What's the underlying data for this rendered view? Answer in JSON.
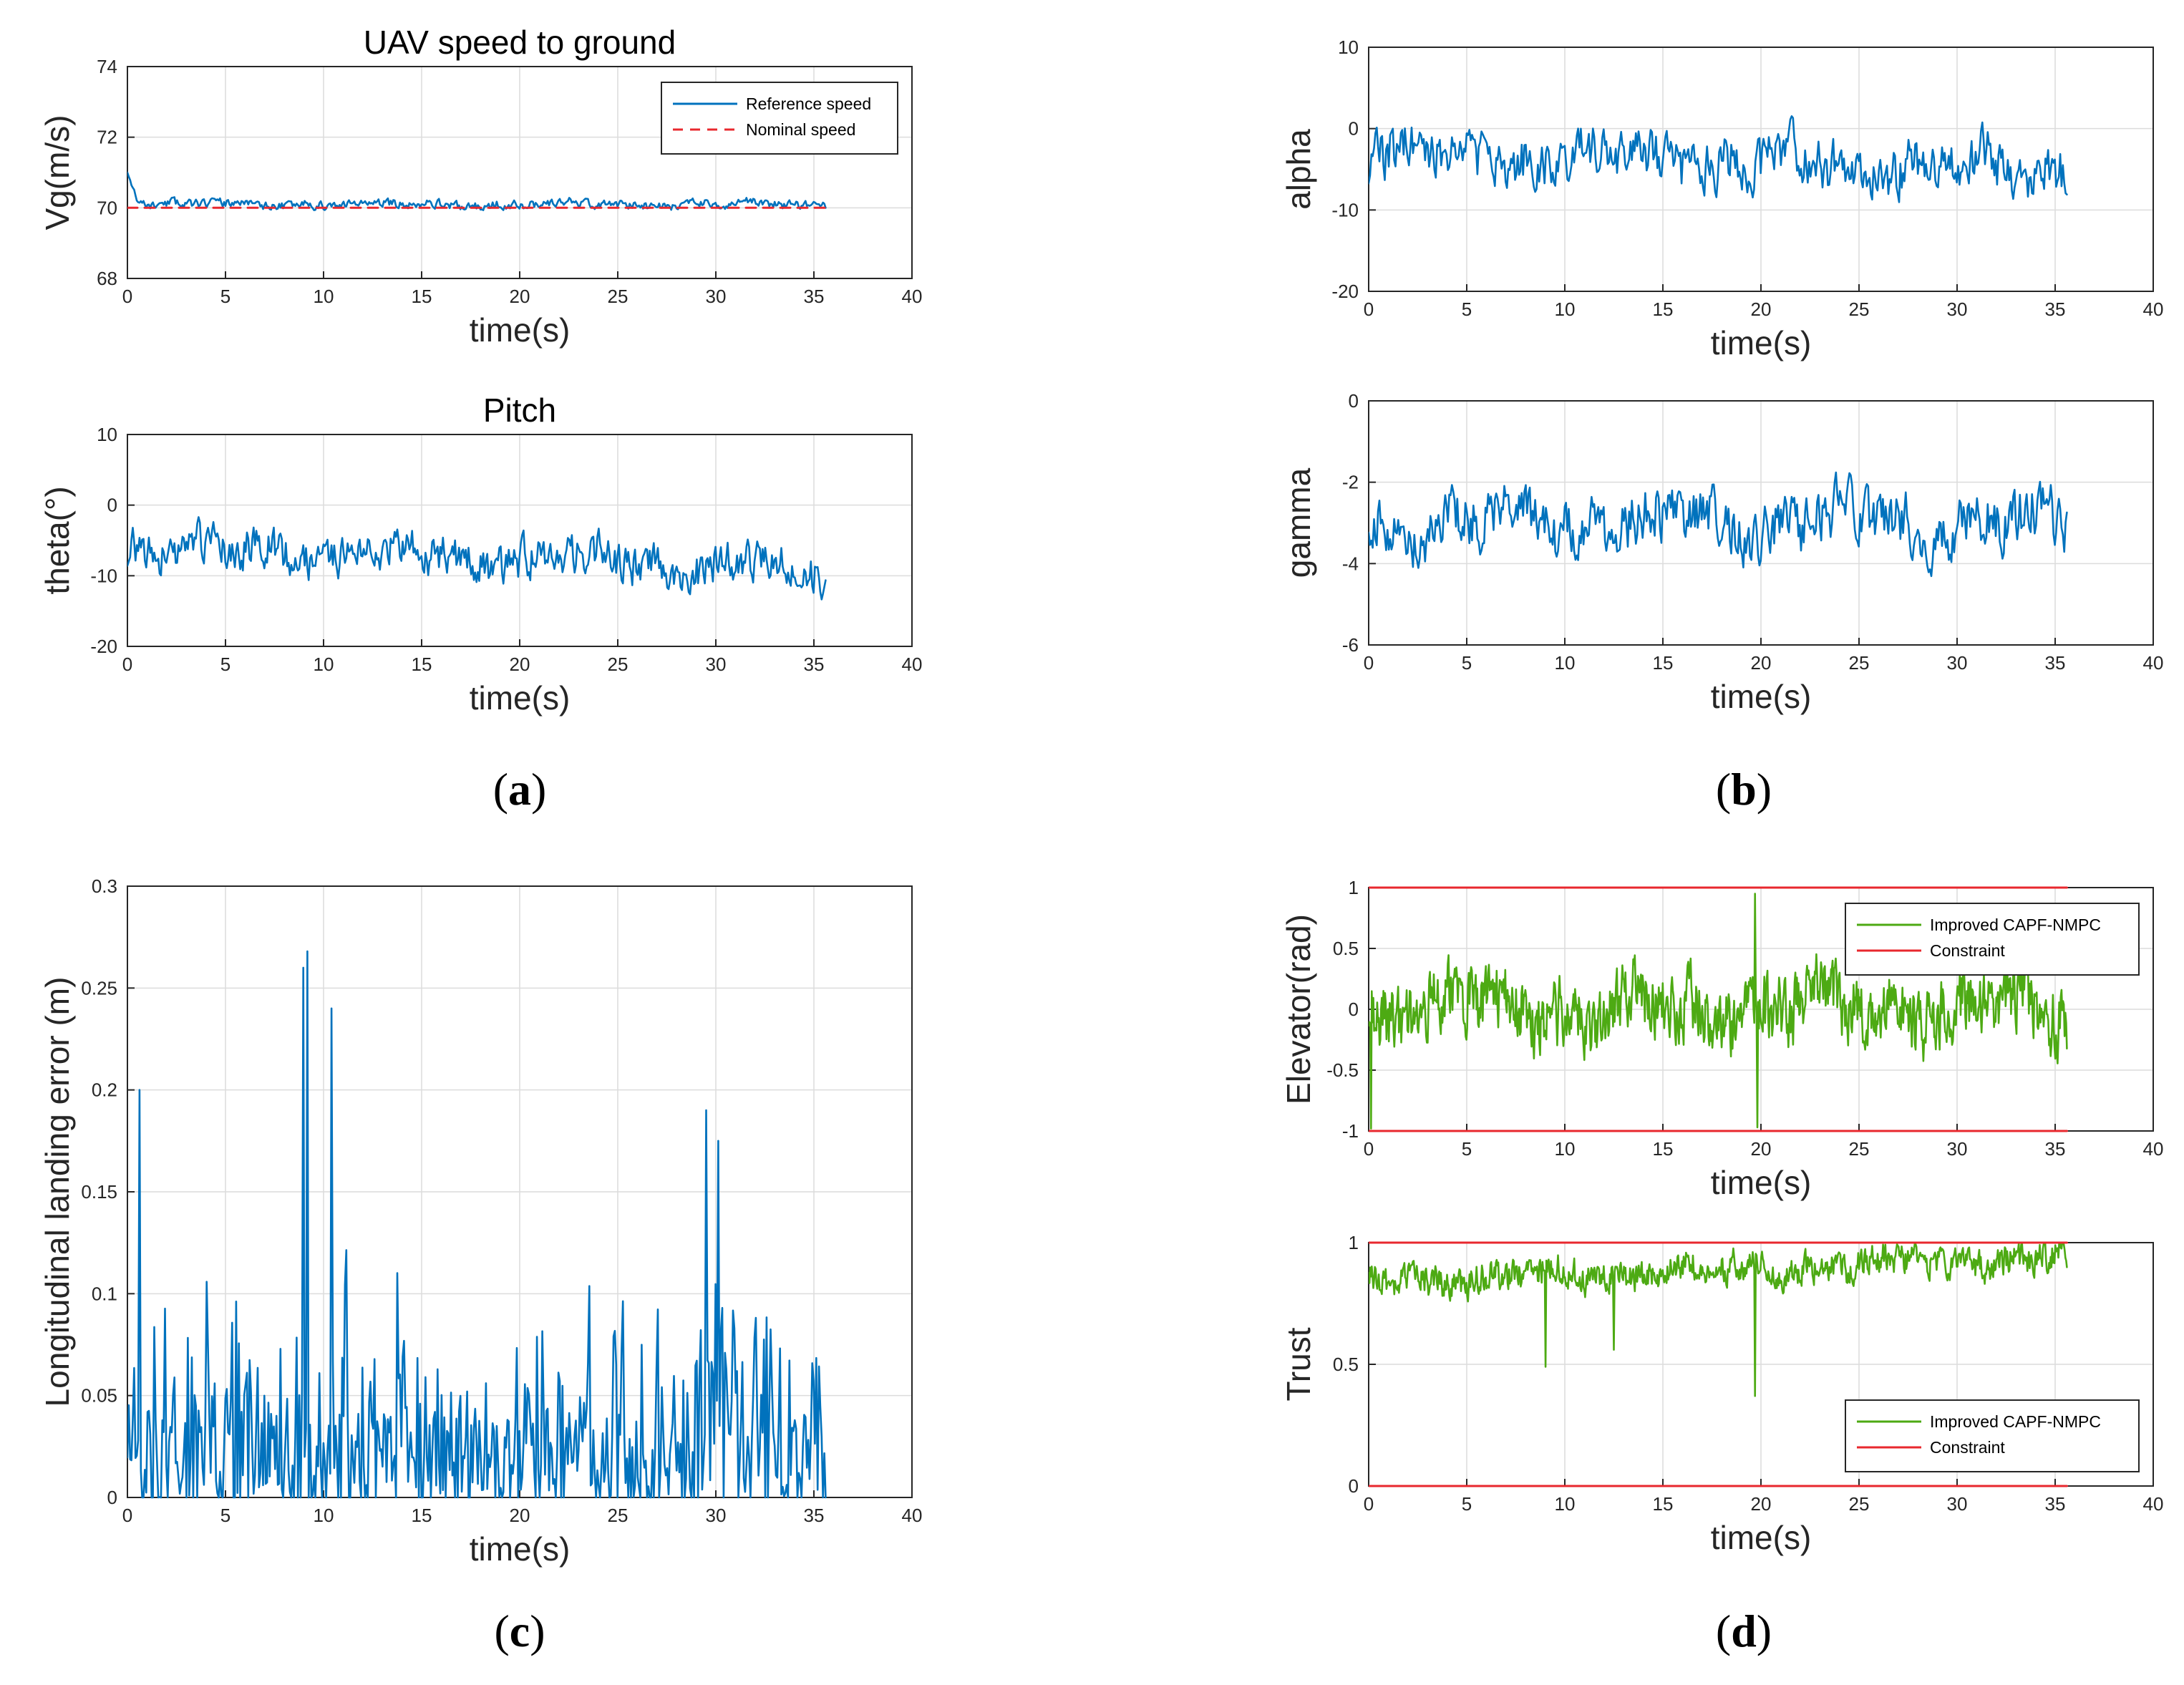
{
  "chart_data": [
    {
      "id": "a1",
      "type": "line",
      "panel": "a",
      "title": "UAV speed to ground",
      "xlabel": "time(s)",
      "ylabel": "Vg(m/s)",
      "xlim": [
        0,
        40
      ],
      "ylim": [
        68,
        74
      ],
      "xticks": [
        0,
        5,
        10,
        15,
        20,
        25,
        30,
        35,
        40
      ],
      "yticks": [
        68,
        70,
        72,
        74
      ],
      "grid": true,
      "legend_position": "top-right",
      "series": [
        {
          "name": "Reference speed",
          "color": "#0072BD",
          "style": "solid",
          "t_end": 35.6,
          "noise": {
            "base": 70.1,
            "amp": 0.2,
            "seed": 11,
            "spike": [
              0.0,
              71.0,
              0.6
            ]
          }
        },
        {
          "name": "Nominal speed",
          "color": "#E8282E",
          "style": "dashed",
          "t_end": 35.6,
          "points": [
            [
              0,
              70
            ],
            [
              35.6,
              70
            ]
          ]
        }
      ]
    },
    {
      "id": "a2",
      "type": "line",
      "panel": "a",
      "title": "Pitch",
      "xlabel": "time(s)",
      "ylabel": "theta(°)",
      "xlim": [
        0,
        40
      ],
      "ylim": [
        -20,
        10
      ],
      "xticks": [
        0,
        5,
        10,
        15,
        20,
        25,
        30,
        35,
        40
      ],
      "yticks": [
        -20,
        -10,
        0,
        10
      ],
      "grid": true,
      "series": [
        {
          "name": "theta",
          "color": "#0072BD",
          "style": "solid",
          "t_end": 35.6,
          "noise": {
            "base": -6,
            "amp": 4.5,
            "seed": 23,
            "trend": -3
          }
        }
      ]
    },
    {
      "id": "b1",
      "type": "line",
      "panel": "b",
      "title": "",
      "xlabel": "time(s)",
      "ylabel": "alpha",
      "xlim": [
        0,
        40
      ],
      "ylim": [
        -20,
        10
      ],
      "xticks": [
        0,
        5,
        10,
        15,
        20,
        25,
        30,
        35,
        40
      ],
      "yticks": [
        -20,
        -10,
        0,
        10
      ],
      "grid": true,
      "series": [
        {
          "name": "alpha",
          "color": "#0072BD",
          "style": "solid",
          "t_end": 35.6,
          "noise": {
            "base": -3,
            "amp": 5,
            "seed": 37,
            "trend": -2
          }
        }
      ]
    },
    {
      "id": "b2",
      "type": "line",
      "panel": "b",
      "title": "",
      "xlabel": "time(s)",
      "ylabel": "gamma",
      "xlim": [
        0,
        40
      ],
      "ylim": [
        -6,
        0
      ],
      "xticks": [
        0,
        5,
        10,
        15,
        20,
        25,
        30,
        35,
        40
      ],
      "yticks": [
        -6,
        -4,
        -2,
        0
      ],
      "grid": true,
      "series": [
        {
          "name": "gamma",
          "color": "#0072BD",
          "style": "solid",
          "t_end": 35.6,
          "noise": {
            "base": -3,
            "amp": 1.1,
            "seed": 41
          }
        }
      ]
    },
    {
      "id": "c",
      "type": "line",
      "panel": "c",
      "title": "",
      "xlabel": "time(s)",
      "ylabel": "Longitudinal landing error (m)",
      "xlim": [
        0,
        40
      ],
      "ylim": [
        0,
        0.3
      ],
      "xticks": [
        0,
        5,
        10,
        15,
        20,
        25,
        30,
        35,
        40
      ],
      "yticks": [
        0,
        0.05,
        0.1,
        0.15,
        0.2,
        0.25,
        0.3
      ],
      "grid": true,
      "series": [
        {
          "name": "error",
          "color": "#0072BD",
          "style": "solid",
          "t_end": 35.6,
          "noise": {
            "base": 0.05,
            "amp": 0.07,
            "seed": 53,
            "abs": true,
            "peaks": [
              [
                9.2,
                0.268
              ],
              [
                9.0,
                0.26
              ],
              [
                10.4,
                0.24
              ],
              [
                0.6,
                0.2
              ],
              [
                29.5,
                0.19
              ],
              [
                30.1,
                0.175
              ]
            ]
          }
        }
      ]
    },
    {
      "id": "d1",
      "type": "line",
      "panel": "d",
      "title": "",
      "xlabel": "time(s)",
      "ylabel": "Elevator(rad)",
      "xlim": [
        0,
        40
      ],
      "ylim": [
        -1,
        1
      ],
      "xticks": [
        0,
        5,
        10,
        15,
        20,
        25,
        30,
        35,
        40
      ],
      "yticks": [
        -1,
        -0.5,
        0,
        0.5,
        1
      ],
      "grid": true,
      "legend_position": "top-right",
      "series": [
        {
          "name": "Improved CAPF-NMPC",
          "color": "#4DAA13",
          "style": "solid",
          "t_end": 35.6,
          "noise": {
            "base": 0,
            "amp": 0.45,
            "seed": 67,
            "n": 900,
            "peaks": [
              [
                19.7,
                0.95
              ],
              [
                19.8,
                -0.97
              ],
              [
                0.1,
                -0.98
              ]
            ]
          }
        },
        {
          "name": "Constraint",
          "color": "#E8282E",
          "style": "solid",
          "t_end": 35.6,
          "points": [
            [
              0,
              1
            ],
            [
              35.6,
              1
            ]
          ],
          "extra": [
            [
              0,
              -1
            ],
            [
              35.6,
              -1
            ]
          ]
        }
      ]
    },
    {
      "id": "d2",
      "type": "line",
      "panel": "d",
      "title": "",
      "xlabel": "time(s)",
      "ylabel": "Trust",
      "xlim": [
        0,
        40
      ],
      "ylim": [
        0,
        1
      ],
      "xticks": [
        0,
        5,
        10,
        15,
        20,
        25,
        30,
        35,
        40
      ],
      "yticks": [
        0,
        0.5,
        1
      ],
      "grid": true,
      "legend_position": "bottom-right",
      "series": [
        {
          "name": "Improved CAPF-NMPC",
          "color": "#4DAA13",
          "style": "solid",
          "t_end": 35.6,
          "noise": {
            "base": 0.84,
            "amp": 0.1,
            "seed": 71,
            "n": 900,
            "trend": 0.1,
            "peaks": [
              [
                19.7,
                0.37
              ],
              [
                12.5,
                0.56
              ],
              [
                9.0,
                0.49
              ]
            ]
          }
        },
        {
          "name": "Constraint",
          "color": "#E8282E",
          "style": "solid",
          "t_end": 35.6,
          "points": [
            [
              0,
              1
            ],
            [
              35.6,
              1
            ]
          ],
          "extra": [
            [
              0,
              0
            ],
            [
              35.6,
              0
            ]
          ]
        }
      ]
    }
  ],
  "panel_labels": {
    "a": "(a)",
    "b": "(b)",
    "c": "(c)",
    "d": "(d)"
  }
}
